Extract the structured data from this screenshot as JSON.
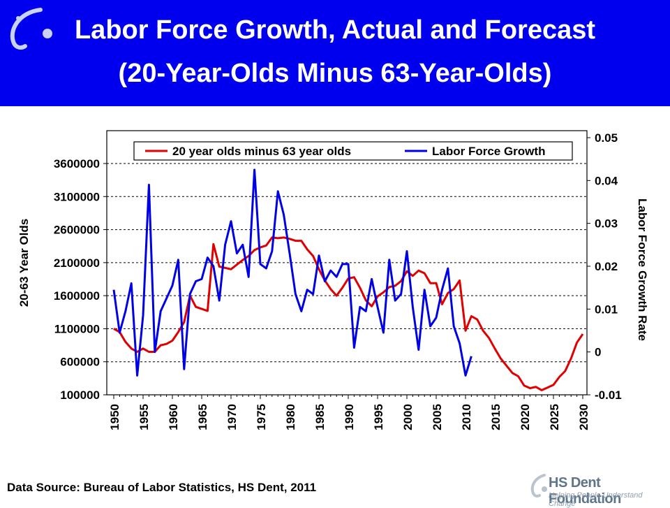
{
  "header": {
    "title_line1": "Labor Force Growth, Actual and Forecast",
    "title_line2": "(20-Year-Olds Minus 63-Year-Olds)"
  },
  "footer": {
    "source": "Data Source: Bureau of Labor Statistics, HS Dent, 2011",
    "logo_name": "HS Dent Foundation",
    "logo_tagline": "Helping People Understand Change"
  },
  "colors": {
    "banner": "#0000ee",
    "red_series": "#e00000",
    "blue_series": "#0000e6"
  },
  "chart_data": {
    "type": "line",
    "x_ticks": [
      1950,
      1955,
      1960,
      1965,
      1970,
      1975,
      1980,
      1985,
      1990,
      1995,
      2000,
      2005,
      2010,
      2015,
      2020,
      2025,
      2030
    ],
    "xlim": [
      1950,
      2030
    ],
    "ylabel_left": "20-63 Year Olds",
    "ylabel_right": "Labor Force Growth Rate",
    "yticks_left": [
      "3600000",
      "3100000",
      "2600000",
      "2100000",
      "1600000",
      "1100000",
      "600000",
      "100000"
    ],
    "yticks_right": [
      "0.05",
      "0.04",
      "0.03",
      "0.02",
      "0.01",
      "0",
      "-0.01"
    ],
    "ylim_left": [
      100000,
      3600000
    ],
    "ylim_right": [
      -0.01,
      0.05
    ],
    "legend_position": "top",
    "series": [
      {
        "name": "20 year olds minus 63 year olds",
        "axis": "left",
        "color": "#e00000",
        "points": [
          [
            1950,
            1100000
          ],
          [
            1951,
            1050000
          ],
          [
            1952,
            900000
          ],
          [
            1953,
            800000
          ],
          [
            1954,
            750000
          ],
          [
            1955,
            800000
          ],
          [
            1956,
            750000
          ],
          [
            1957,
            750000
          ],
          [
            1958,
            850000
          ],
          [
            1959,
            870000
          ],
          [
            1960,
            920000
          ],
          [
            1961,
            1050000
          ],
          [
            1962,
            1200000
          ],
          [
            1963,
            1600000
          ],
          [
            1964,
            1430000
          ],
          [
            1965,
            1400000
          ],
          [
            1966,
            1370000
          ],
          [
            1967,
            2380000
          ],
          [
            1968,
            2040000
          ],
          [
            1969,
            2020000
          ],
          [
            1970,
            2000000
          ],
          [
            1971,
            2070000
          ],
          [
            1972,
            2140000
          ],
          [
            1973,
            2200000
          ],
          [
            1974,
            2290000
          ],
          [
            1975,
            2330000
          ],
          [
            1976,
            2360000
          ],
          [
            1977,
            2480000
          ],
          [
            1978,
            2470000
          ],
          [
            1979,
            2480000
          ],
          [
            1980,
            2460000
          ],
          [
            1981,
            2430000
          ],
          [
            1982,
            2430000
          ],
          [
            1983,
            2300000
          ],
          [
            1984,
            2200000
          ],
          [
            1985,
            2000000
          ],
          [
            1986,
            1830000
          ],
          [
            1987,
            1700000
          ],
          [
            1988,
            1600000
          ],
          [
            1989,
            1720000
          ],
          [
            1990,
            1860000
          ],
          [
            1991,
            1880000
          ],
          [
            1992,
            1720000
          ],
          [
            1993,
            1530000
          ],
          [
            1994,
            1440000
          ],
          [
            1995,
            1590000
          ],
          [
            1996,
            1650000
          ],
          [
            1997,
            1730000
          ],
          [
            1998,
            1750000
          ],
          [
            1999,
            1820000
          ],
          [
            2000,
            1970000
          ],
          [
            2001,
            1900000
          ],
          [
            2002,
            1980000
          ],
          [
            2003,
            1940000
          ],
          [
            2004,
            1790000
          ],
          [
            2005,
            1790000
          ],
          [
            2006,
            1470000
          ],
          [
            2007,
            1640000
          ],
          [
            2008,
            1700000
          ],
          [
            2009,
            1830000
          ],
          [
            2010,
            1070000
          ],
          [
            2011,
            1290000
          ],
          [
            2012,
            1240000
          ],
          [
            2013,
            1070000
          ],
          [
            2014,
            960000
          ],
          [
            2015,
            800000
          ],
          [
            2016,
            650000
          ],
          [
            2017,
            540000
          ],
          [
            2018,
            430000
          ],
          [
            2019,
            380000
          ],
          [
            2020,
            240000
          ],
          [
            2021,
            200000
          ],
          [
            2022,
            220000
          ],
          [
            2023,
            170000
          ],
          [
            2024,
            210000
          ],
          [
            2025,
            250000
          ],
          [
            2026,
            370000
          ],
          [
            2027,
            460000
          ],
          [
            2028,
            650000
          ],
          [
            2029,
            890000
          ],
          [
            2030,
            1020000
          ]
        ]
      },
      {
        "name": "Labor Force Growth",
        "axis": "right",
        "color": "#0000e6",
        "points": [
          [
            1950,
            0.0145
          ],
          [
            1951,
            0.0045
          ],
          [
            1952,
            0.0095
          ],
          [
            1953,
            0.016
          ],
          [
            1954,
            -0.0055
          ],
          [
            1955,
            0.0085
          ],
          [
            1956,
            0.039
          ],
          [
            1957,
            0.0
          ],
          [
            1958,
            0.0095
          ],
          [
            1959,
            0.0125
          ],
          [
            1960,
            0.0155
          ],
          [
            1961,
            0.0215
          ],
          [
            1962,
            -0.004
          ],
          [
            1963,
            0.0135
          ],
          [
            1964,
            0.0165
          ],
          [
            1965,
            0.017
          ],
          [
            1966,
            0.022
          ],
          [
            1967,
            0.02
          ],
          [
            1968,
            0.012
          ],
          [
            1969,
            0.025
          ],
          [
            1970,
            0.0305
          ],
          [
            1971,
            0.023
          ],
          [
            1972,
            0.025
          ],
          [
            1973,
            0.0175
          ],
          [
            1974,
            0.0425
          ],
          [
            1975,
            0.0205
          ],
          [
            1976,
            0.0195
          ],
          [
            1977,
            0.0235
          ],
          [
            1978,
            0.0375
          ],
          [
            1979,
            0.032
          ],
          [
            1980,
            0.023
          ],
          [
            1981,
            0.0135
          ],
          [
            1982,
            0.0095
          ],
          [
            1983,
            0.0145
          ],
          [
            1984,
            0.0135
          ],
          [
            1985,
            0.0225
          ],
          [
            1986,
            0.0165
          ],
          [
            1987,
            0.019
          ],
          [
            1988,
            0.0175
          ],
          [
            1989,
            0.0205
          ],
          [
            1990,
            0.0205
          ],
          [
            1991,
            0.001
          ],
          [
            1992,
            0.0105
          ],
          [
            1993,
            0.0095
          ],
          [
            1994,
            0.017
          ],
          [
            1995,
            0.0105
          ],
          [
            1996,
            0.0045
          ],
          [
            1997,
            0.0215
          ],
          [
            1998,
            0.012
          ],
          [
            1999,
            0.0135
          ],
          [
            2000,
            0.0235
          ],
          [
            2001,
            0.0105
          ],
          [
            2002,
            0.0005
          ],
          [
            2003,
            0.0145
          ],
          [
            2004,
            0.006
          ],
          [
            2005,
            0.008
          ],
          [
            2006,
            0.0145
          ],
          [
            2007,
            0.0195
          ],
          [
            2008,
            0.006
          ],
          [
            2009,
            0.002
          ],
          [
            2010,
            -0.0055
          ],
          [
            2011,
            -0.001
          ]
        ]
      }
    ]
  }
}
